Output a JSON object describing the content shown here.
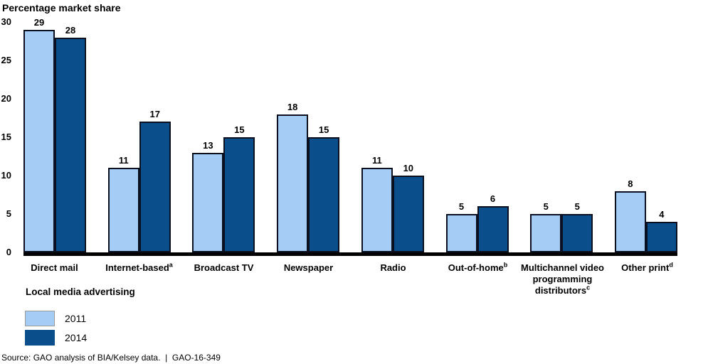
{
  "page": {
    "footer_text": "Source: GAO analysis of BIA/Kelsey data.  |  GAO-16-349"
  },
  "chart_data": {
    "type": "bar",
    "title": "Percentage market share",
    "xlabel": "Local media advertising",
    "ylim": [
      0,
      30
    ],
    "yticks": [
      0,
      5,
      10,
      15,
      20,
      25,
      30
    ],
    "grid": false,
    "legend_position": "bottom-left",
    "categories": [
      {
        "lines": [
          "Direct mail"
        ],
        "sup": ""
      },
      {
        "lines": [
          "Internet-based"
        ],
        "sup": "a"
      },
      {
        "lines": [
          "Broadcast TV"
        ],
        "sup": ""
      },
      {
        "lines": [
          "Newspaper"
        ],
        "sup": ""
      },
      {
        "lines": [
          "Radio"
        ],
        "sup": ""
      },
      {
        "lines": [
          "Out-of-home"
        ],
        "sup": "b"
      },
      {
        "lines": [
          "Multichannel video",
          "programming",
          "distributors"
        ],
        "sup": "c"
      },
      {
        "lines": [
          "Other print"
        ],
        "sup": "d"
      }
    ],
    "series": [
      {
        "name": "2011",
        "color": "#A4CCF4",
        "values": [
          29,
          11,
          13,
          18,
          11,
          5,
          5,
          8
        ]
      },
      {
        "name": "2014",
        "color": "#0B4E8C",
        "values": [
          28,
          17,
          15,
          15,
          10,
          6,
          5,
          4
        ]
      }
    ],
    "colors": {
      "bar_border": "#0A1020",
      "axis": "#000000",
      "legend_swatch_border": "#999999",
      "text": "#000000"
    }
  }
}
